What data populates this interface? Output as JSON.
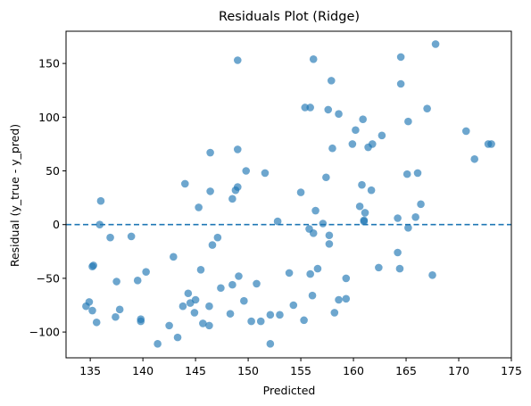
{
  "chart_data": {
    "type": "scatter",
    "title": "Residuals Plot (Ridge)",
    "xlabel": "Predicted",
    "ylabel": "Residual (y_true - y_pred)",
    "xlim": [
      132.7,
      175
    ],
    "ylim": [
      -124,
      180
    ],
    "xticks": [
      135,
      140,
      145,
      150,
      155,
      160,
      165,
      170,
      175
    ],
    "yticks": [
      -100,
      -50,
      0,
      50,
      100,
      150
    ],
    "grid": false,
    "reference_line": {
      "y": 0,
      "style": "dashed"
    },
    "point_color": "#1f77b4",
    "point_alpha": 0.65,
    "points": [
      [
        134.6,
        -76
      ],
      [
        134.9,
        -72
      ],
      [
        135.2,
        -39
      ],
      [
        135.3,
        -38
      ],
      [
        135.2,
        -80
      ],
      [
        135.6,
        -91
      ],
      [
        135.9,
        0
      ],
      [
        136.0,
        22
      ],
      [
        136.9,
        -12
      ],
      [
        137.4,
        -86
      ],
      [
        137.5,
        -53
      ],
      [
        137.8,
        -79
      ],
      [
        138.9,
        -11
      ],
      [
        139.5,
        -52
      ],
      [
        139.8,
        -88
      ],
      [
        139.8,
        -90
      ],
      [
        140.3,
        -44
      ],
      [
        141.4,
        -111
      ],
      [
        142.5,
        -94
      ],
      [
        142.9,
        -30
      ],
      [
        143.3,
        -105
      ],
      [
        143.8,
        -76
      ],
      [
        144.0,
        38
      ],
      [
        144.3,
        -64
      ],
      [
        144.5,
        -73
      ],
      [
        144.9,
        -82
      ],
      [
        145.0,
        -70
      ],
      [
        145.3,
        16
      ],
      [
        145.5,
        -42
      ],
      [
        145.7,
        -92
      ],
      [
        146.3,
        -94
      ],
      [
        146.3,
        -76
      ],
      [
        146.4,
        31
      ],
      [
        146.4,
        67
      ],
      [
        146.6,
        -19
      ],
      [
        147.1,
        -12
      ],
      [
        147.4,
        -59
      ],
      [
        148.3,
        -83
      ],
      [
        148.5,
        24
      ],
      [
        148.5,
        -56
      ],
      [
        148.8,
        32
      ],
      [
        149.0,
        35
      ],
      [
        149.0,
        70
      ],
      [
        149.1,
        -48
      ],
      [
        149.0,
        153
      ],
      [
        149.6,
        -71
      ],
      [
        149.8,
        50
      ],
      [
        150.3,
        -90
      ],
      [
        150.8,
        -55
      ],
      [
        151.2,
        -90
      ],
      [
        151.6,
        48
      ],
      [
        152.1,
        -84
      ],
      [
        152.1,
        -111
      ],
      [
        152.8,
        3
      ],
      [
        153.0,
        -84
      ],
      [
        153.9,
        -45
      ],
      [
        154.3,
        -75
      ],
      [
        155.0,
        30
      ],
      [
        155.3,
        -89
      ],
      [
        155.4,
        109
      ],
      [
        155.8,
        -4
      ],
      [
        155.9,
        109
      ],
      [
        155.9,
        -46
      ],
      [
        156.1,
        -66
      ],
      [
        156.2,
        -8
      ],
      [
        156.2,
        154
      ],
      [
        156.4,
        13
      ],
      [
        156.6,
        -41
      ],
      [
        157.1,
        1
      ],
      [
        157.4,
        44
      ],
      [
        157.6,
        107
      ],
      [
        157.7,
        -10
      ],
      [
        157.7,
        -18
      ],
      [
        157.9,
        134
      ],
      [
        158.0,
        71
      ],
      [
        158.2,
        -82
      ],
      [
        158.6,
        103
      ],
      [
        158.6,
        -70
      ],
      [
        159.3,
        -50
      ],
      [
        159.3,
        -69
      ],
      [
        159.9,
        75
      ],
      [
        160.2,
        88
      ],
      [
        160.6,
        17
      ],
      [
        160.8,
        37
      ],
      [
        160.9,
        98
      ],
      [
        161.0,
        4
      ],
      [
        161.0,
        3
      ],
      [
        161.1,
        11
      ],
      [
        161.4,
        72
      ],
      [
        161.7,
        32
      ],
      [
        161.8,
        75
      ],
      [
        162.4,
        -40
      ],
      [
        162.7,
        83
      ],
      [
        164.2,
        6
      ],
      [
        164.2,
        -26
      ],
      [
        164.4,
        -41
      ],
      [
        164.5,
        156
      ],
      [
        164.5,
        131
      ],
      [
        165.1,
        47
      ],
      [
        165.2,
        96
      ],
      [
        165.2,
        -3
      ],
      [
        165.9,
        7
      ],
      [
        166.1,
        48
      ],
      [
        166.4,
        19
      ],
      [
        167.0,
        108
      ],
      [
        167.5,
        -47
      ],
      [
        167.8,
        168
      ],
      [
        170.7,
        87
      ],
      [
        171.5,
        61
      ],
      [
        172.8,
        75
      ],
      [
        173.1,
        75
      ]
    ]
  }
}
